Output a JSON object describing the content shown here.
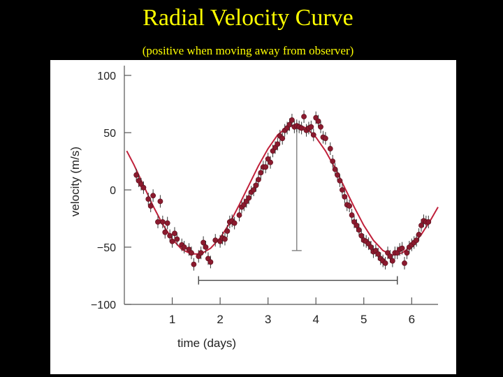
{
  "slide": {
    "title": "Radial Velocity Curve",
    "subtitle": "(positive when moving away from observer)"
  },
  "colors": {
    "background": "#000000",
    "title": "#ffff00",
    "data_points": "#8b1a2e",
    "fit_curve": "#c0203a",
    "axes": "#555555"
  },
  "chart_data": {
    "type": "scatter",
    "title": "",
    "xlabel": "time (days)",
    "ylabel": "velocity (m/s)",
    "xlim": [
      0.0,
      6.55
    ],
    "ylim": [
      -100,
      100
    ],
    "xticks": [
      1,
      2,
      3,
      4,
      5,
      6
    ],
    "xtick_labels": [
      "1",
      "2",
      "3",
      "4",
      "5",
      "6"
    ],
    "yticks": [
      100,
      50,
      0,
      -50,
      -100
    ],
    "ytick_labels": [
      "100",
      "50",
      "0",
      "−50",
      "−100"
    ],
    "grid": false,
    "legend": "none",
    "fit_curve": {
      "description": "sinusoidal fit",
      "amplitude": 57,
      "period": 4.23,
      "phase_peak_day": 3.62,
      "x": [
        0.05,
        0.2,
        0.4,
        0.6,
        0.8,
        1.0,
        1.2,
        1.4,
        1.6,
        1.8,
        2.0,
        2.2,
        2.4,
        2.6,
        2.8,
        3.0,
        3.2,
        3.4,
        3.6,
        3.8,
        4.0,
        4.2,
        4.4,
        4.6,
        4.8,
        5.0,
        5.2,
        5.4,
        5.6,
        5.8,
        6.0,
        6.2,
        6.4,
        6.55
      ],
      "y": [
        34,
        22,
        4,
        -14,
        -30,
        -43,
        -52,
        -56,
        -56,
        -51,
        -42,
        -29,
        -13,
        4,
        21,
        36,
        48,
        55,
        57,
        54,
        46,
        34,
        19,
        2,
        -15,
        -31,
        -44,
        -53,
        -57,
        -55,
        -49,
        -39,
        -26,
        -15
      ]
    },
    "amplitude_marker": {
      "x": 3.6,
      "y_top": 57,
      "y_bottom": -53
    },
    "period_marker": {
      "x_start": 1.55,
      "x_end": 5.7,
      "y": -79
    },
    "points": {
      "x": [
        0.25,
        0.3,
        0.35,
        0.4,
        0.5,
        0.55,
        0.6,
        0.7,
        0.75,
        0.8,
        0.85,
        0.9,
        0.95,
        1.0,
        1.05,
        1.1,
        1.2,
        1.25,
        1.35,
        1.4,
        1.45,
        1.55,
        1.6,
        1.65,
        1.7,
        1.75,
        1.8,
        1.9,
        2.0,
        2.05,
        2.1,
        2.15,
        2.2,
        2.25,
        2.3,
        2.4,
        2.45,
        2.5,
        2.55,
        2.6,
        2.65,
        2.7,
        2.75,
        2.8,
        2.85,
        2.9,
        2.95,
        3.0,
        3.05,
        3.1,
        3.15,
        3.2,
        3.25,
        3.3,
        3.35,
        3.4,
        3.45,
        3.5,
        3.55,
        3.6,
        3.65,
        3.7,
        3.75,
        3.8,
        3.85,
        3.9,
        3.95,
        4.0,
        4.05,
        4.1,
        4.15,
        4.2,
        4.3,
        4.35,
        4.4,
        4.45,
        4.5,
        4.55,
        4.6,
        4.65,
        4.7,
        4.75,
        4.8,
        4.85,
        4.9,
        4.95,
        5.0,
        5.05,
        5.1,
        5.15,
        5.2,
        5.25,
        5.3,
        5.35,
        5.4,
        5.45,
        5.5,
        5.55,
        5.6,
        5.65,
        5.7,
        5.75,
        5.8,
        5.85,
        5.9,
        5.95,
        6.0,
        6.05,
        6.1,
        6.15,
        6.2,
        6.25,
        6.3,
        6.35
      ],
      "y": [
        13,
        8,
        5,
        2,
        -8,
        -14,
        -5,
        -28,
        -10,
        -28,
        -37,
        -29,
        -40,
        -45,
        -38,
        -43,
        -48,
        -50,
        -52,
        -55,
        -65,
        -58,
        -55,
        -46,
        -50,
        -60,
        -63,
        -44,
        -45,
        -42,
        -43,
        -36,
        -28,
        -27,
        -29,
        -22,
        -15,
        -13,
        -10,
        -7,
        -2,
        0,
        4,
        9,
        15,
        20,
        20,
        27,
        24,
        34,
        37,
        40,
        47,
        45,
        52,
        54,
        57,
        61,
        55,
        56,
        55,
        54,
        64,
        52,
        54,
        55,
        48,
        63,
        60,
        55,
        46,
        45,
        36,
        25,
        18,
        13,
        8,
        0,
        -6,
        -13,
        -14,
        -22,
        -28,
        -31,
        -35,
        -40,
        -44,
        -45,
        -47,
        -50,
        -54,
        -53,
        -56,
        -60,
        -62,
        -64,
        -55,
        -58,
        -62,
        -55,
        -55,
        -52,
        -51,
        -64,
        -55,
        -50,
        -48,
        -46,
        -44,
        -39,
        -31,
        -27,
        -28,
        -28
      ]
    }
  }
}
